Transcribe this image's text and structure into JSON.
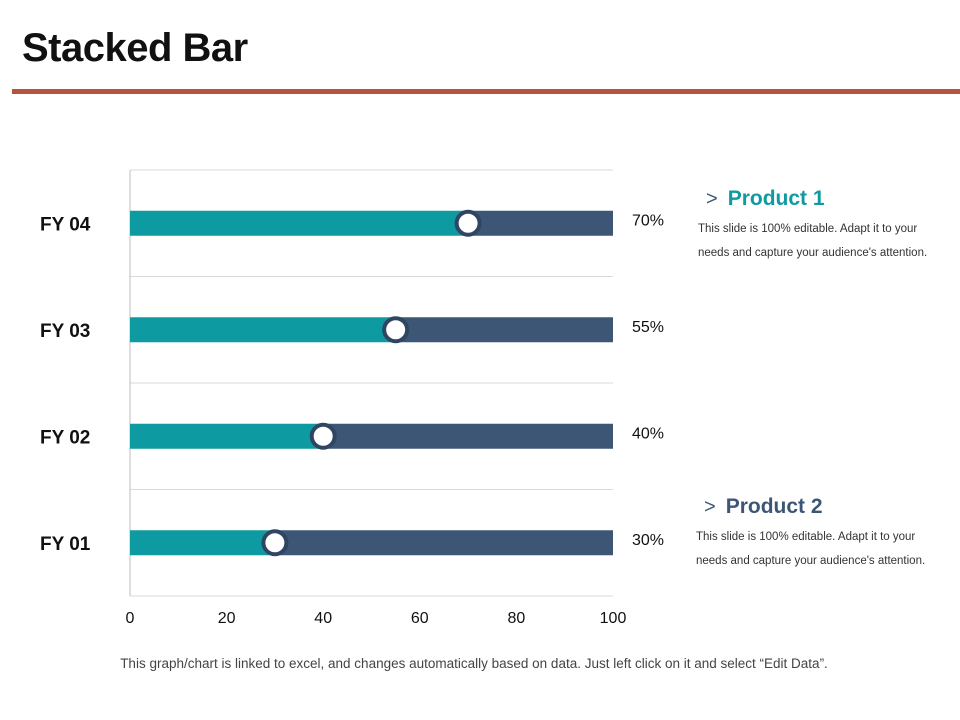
{
  "title": "Stacked Bar",
  "chart_data": {
    "type": "bar",
    "orientation": "horizontal",
    "stacked": true,
    "categories": [
      "FY 01",
      "FY 02",
      "FY 03",
      "FY 04"
    ],
    "series": [
      {
        "name": "Product 1",
        "values": [
          30,
          40,
          55,
          70
        ]
      },
      {
        "name": "Product 2",
        "values": [
          70,
          60,
          45,
          30
        ]
      }
    ],
    "data_labels": [
      "30%",
      "40%",
      "55%",
      "70%"
    ],
    "xlim": [
      0,
      100
    ],
    "xticks": [
      0,
      20,
      40,
      60,
      80,
      100
    ],
    "grid": true
  },
  "colors": {
    "product1": "#0e9aa1",
    "product2": "#3d5676",
    "marker_ring": "#2f4562",
    "grid": "#d9d9d9",
    "axis": "#bfbfbf",
    "rule": "#b4543a"
  },
  "legend": [
    {
      "chevron": ">",
      "title": "Product 1",
      "description": "This slide is 100% editable. Adapt it to your needs and capture your audience's attention."
    },
    {
      "chevron": ">",
      "title": "Product 2",
      "description": "This slide is 100% editable. Adapt it to your needs and capture your audience's attention."
    }
  ],
  "footnote": "This graph/chart is linked to excel, and changes automatically  based on data. Just left click on it and select “Edit Data”."
}
